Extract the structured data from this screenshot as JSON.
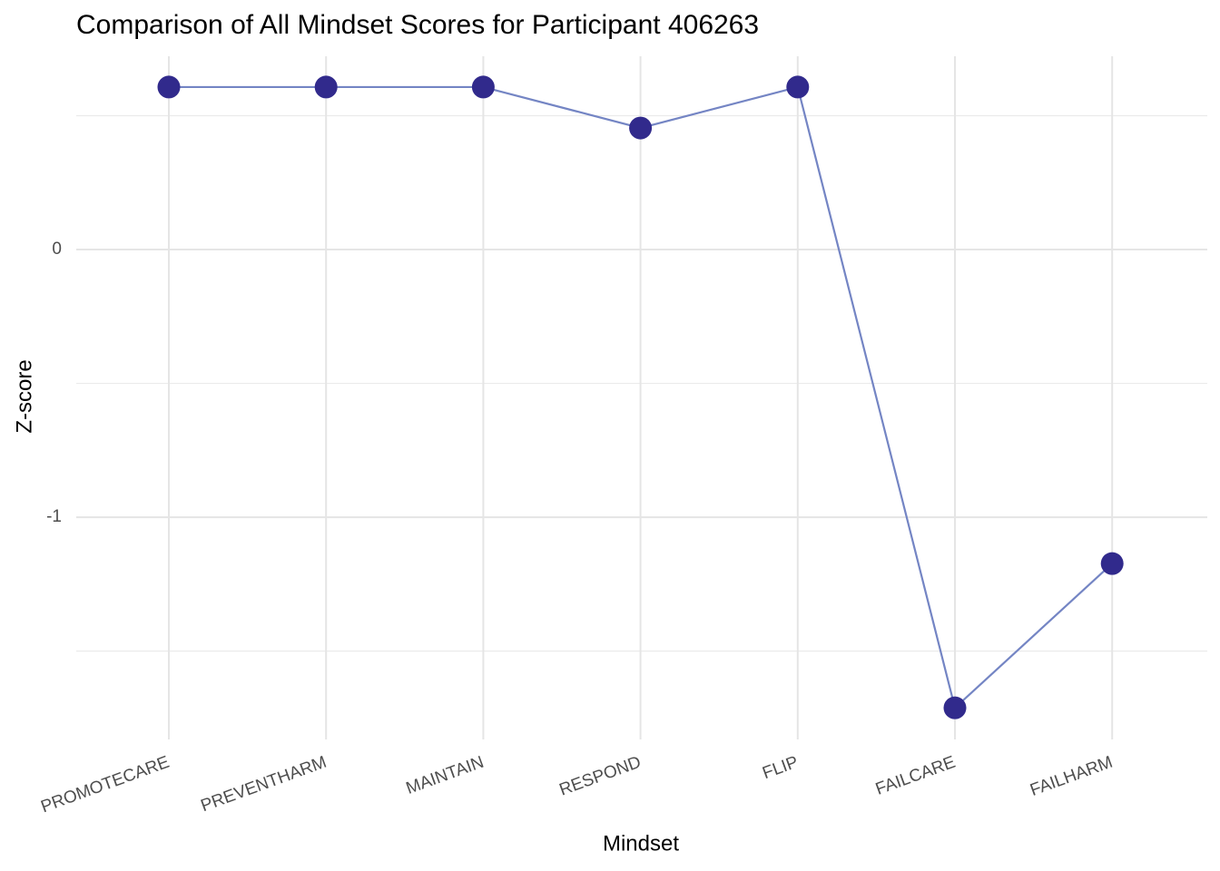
{
  "chart_data": {
    "type": "line",
    "title": "Comparison of All Mindset Scores for Participant 406263",
    "x_label": "Mindset",
    "y_label": "Z-score",
    "categories": [
      "PROMOTECARE",
      "PREVENTHARM",
      "MAINTAIN",
      "RESPOND",
      "FLIP",
      "FAILCARE",
      "FAILHARM"
    ],
    "series": [
      {
        "name": "Z-score",
        "line_color": "#7485c4",
        "color": "#312a8c",
        "values": [
          0.607,
          0.607,
          0.607,
          0.454,
          0.607,
          -1.712,
          -1.173
        ]
      }
    ],
    "ylim": [
      -1.83,
      0.722
    ],
    "yticks": [
      -1,
      0
    ],
    "grid": true
  }
}
